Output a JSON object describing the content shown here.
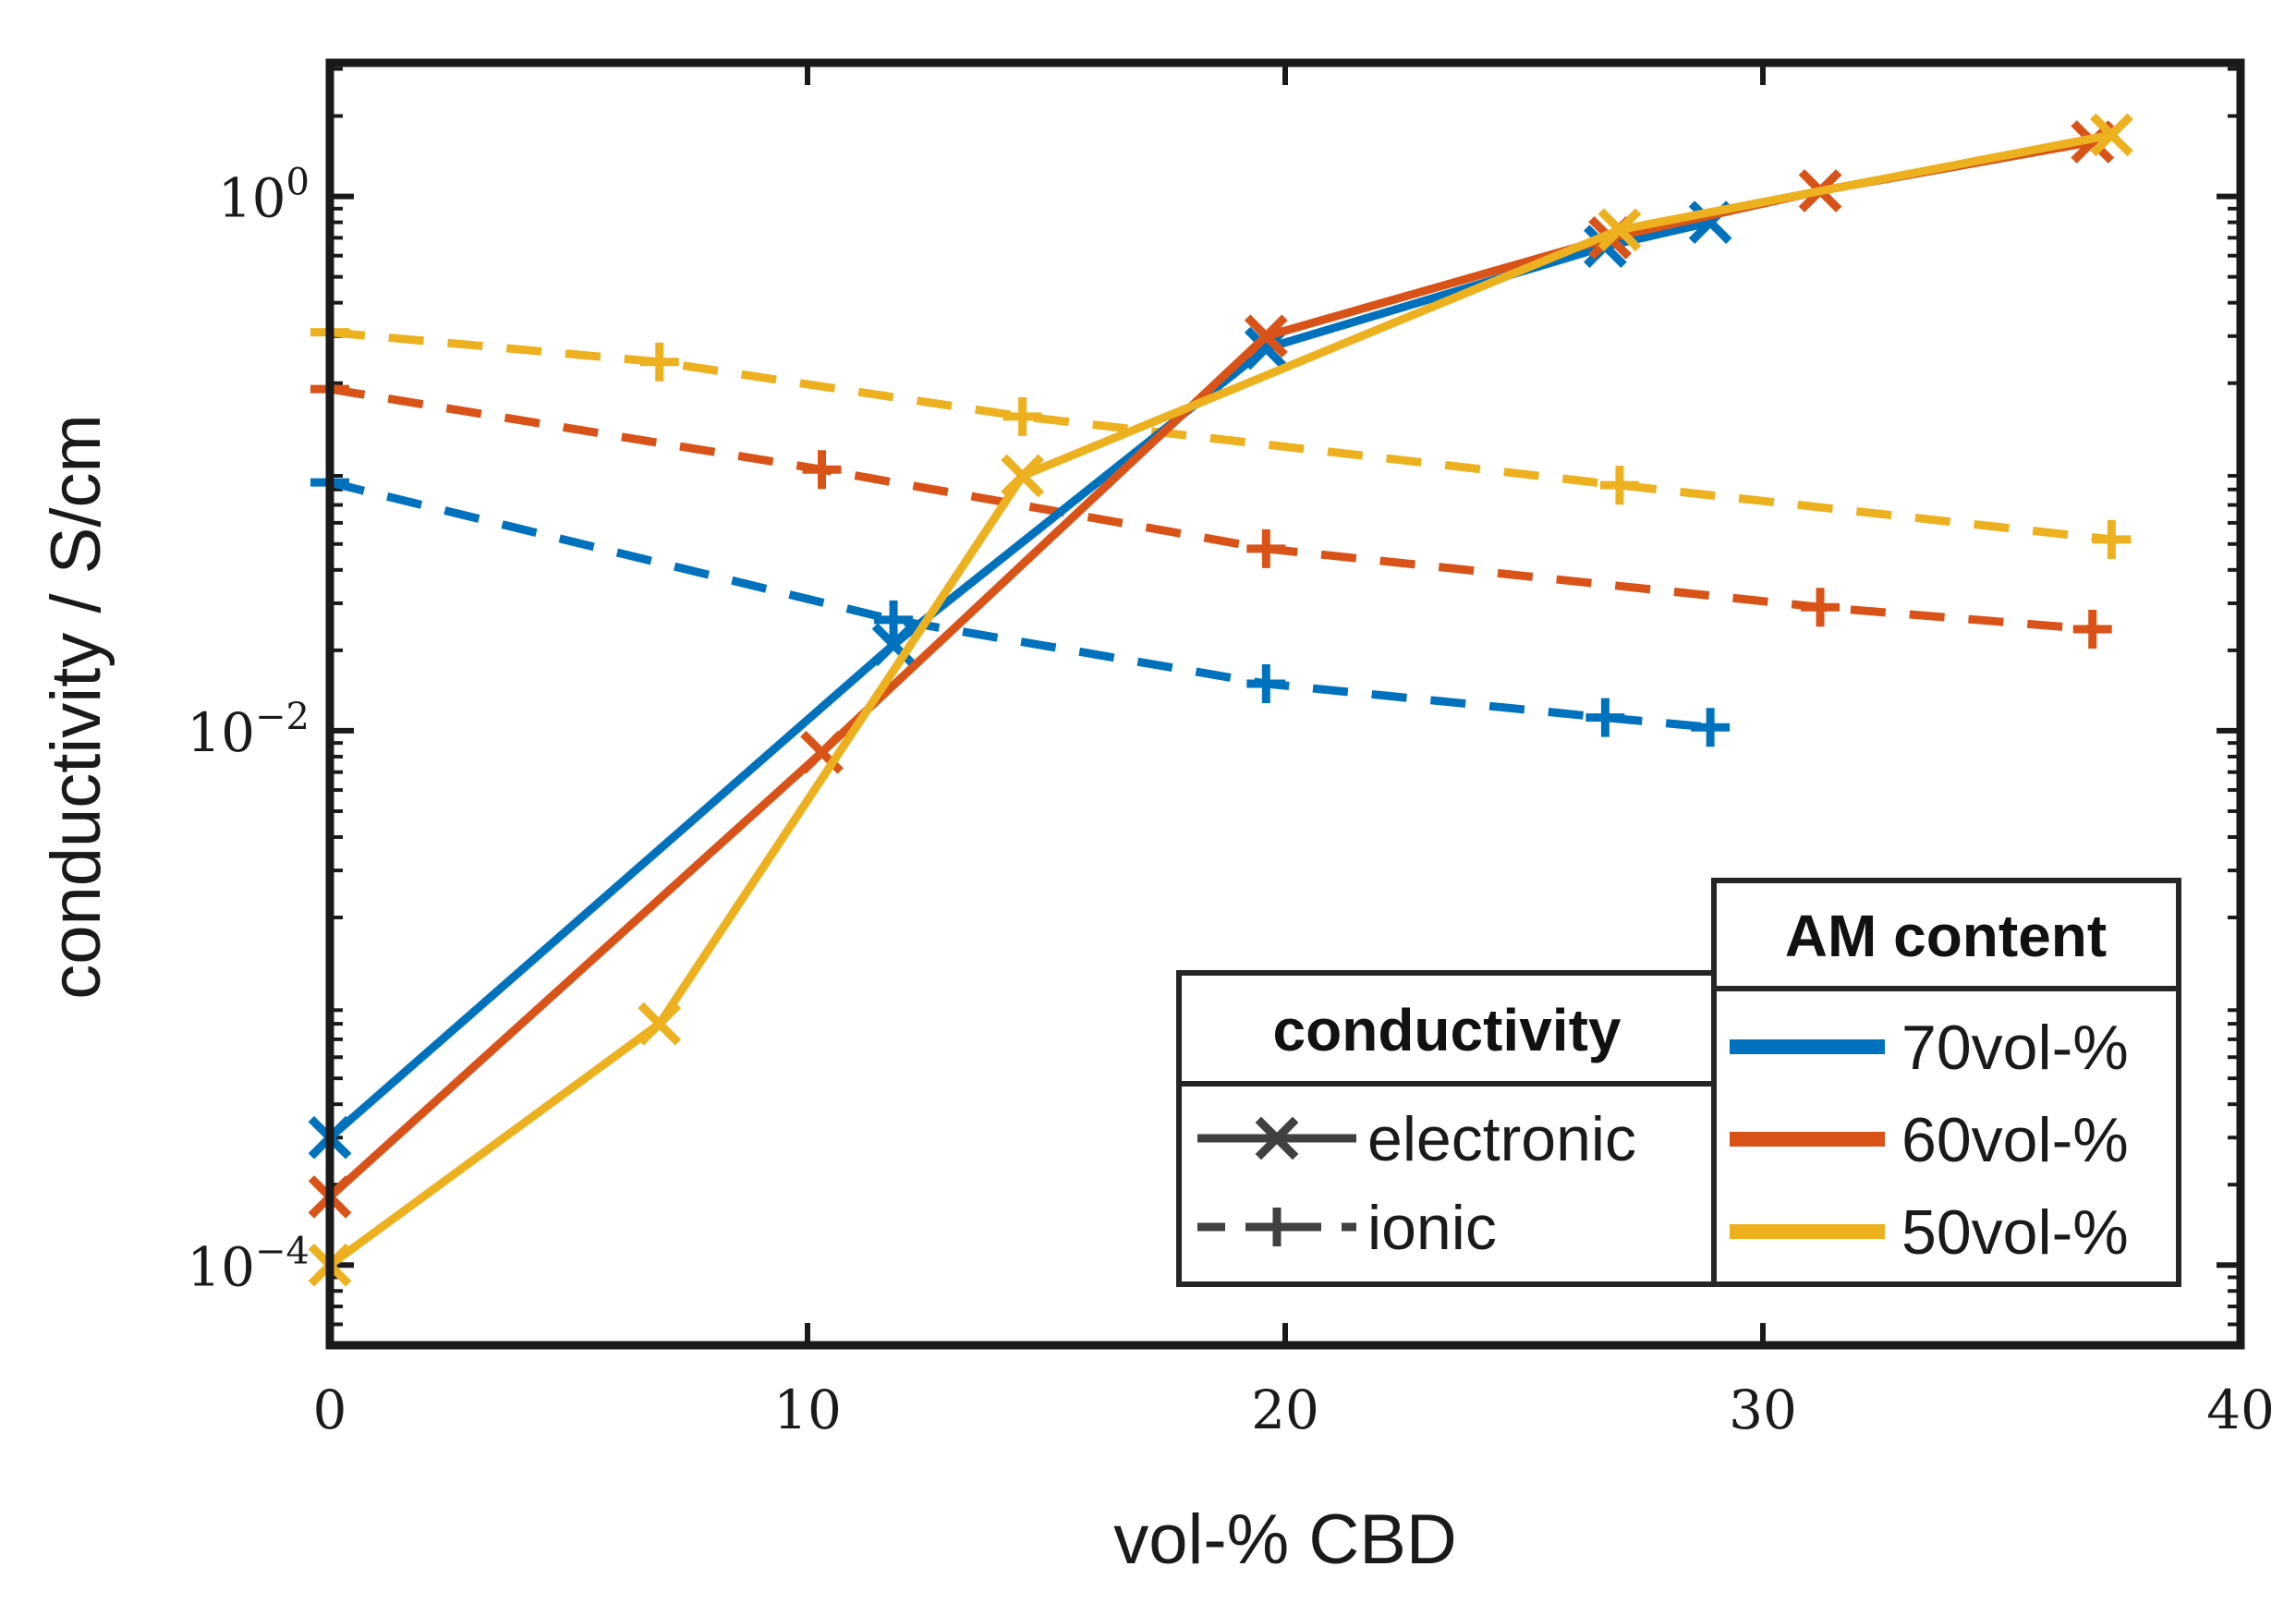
{
  "chart_data": {
    "type": "line",
    "xlabel": "vol-% CBD",
    "ylabel": "conductivity / S/cm",
    "xlim": [
      0,
      40
    ],
    "ylim_log10": [
      -4.3,
      0.5
    ],
    "yscale": "log",
    "x_ticks": [
      {
        "value": 0,
        "label": "0"
      },
      {
        "value": 10,
        "label": "10"
      },
      {
        "value": 20,
        "label": "20"
      },
      {
        "value": 30,
        "label": "30"
      },
      {
        "value": 40,
        "label": "40"
      }
    ],
    "y_ticks": [
      {
        "exp": 0,
        "base": "10",
        "sup": "0"
      },
      {
        "exp": -2,
        "base": "10",
        "sup": "−2"
      },
      {
        "exp": -4,
        "base": "10",
        "sup": "−4"
      }
    ],
    "series": [
      {
        "name": "70vol-% electronic",
        "am": "70vol-%",
        "kind": "electronic",
        "color": "#0072BD",
        "x": [
          0,
          11.8,
          19.6,
          26.7,
          28.9
        ],
        "y": [
          0.0003,
          0.021,
          0.27,
          0.65,
          0.8
        ]
      },
      {
        "name": "60vol-% electronic",
        "am": "60vol-%",
        "kind": "electronic",
        "color": "#D95319",
        "x": [
          0,
          10.3,
          19.6,
          26.8,
          31.2,
          36.9
        ],
        "y": [
          0.00018,
          0.0083,
          0.3,
          0.7,
          1.05,
          1.6
        ]
      },
      {
        "name": "50vol-% electronic",
        "am": "50vol-%",
        "kind": "electronic",
        "color": "#EDB120",
        "x": [
          0,
          6.9,
          14.5,
          27.0,
          37.3
        ],
        "y": [
          0.0001,
          0.0008,
          0.09,
          0.75,
          1.7
        ]
      },
      {
        "name": "70vol-% ionic",
        "am": "70vol-%",
        "kind": "ionic",
        "color": "#0072BD",
        "x": [
          0,
          11.8,
          19.6,
          26.7,
          28.9
        ],
        "y": [
          0.085,
          0.026,
          0.015,
          0.0112,
          0.0103
        ]
      },
      {
        "name": "60vol-% ionic",
        "am": "60vol-%",
        "kind": "ionic",
        "color": "#D95319",
        "x": [
          0,
          10.3,
          19.6,
          31.2,
          36.9
        ],
        "y": [
          0.19,
          0.095,
          0.048,
          0.029,
          0.024
        ]
      },
      {
        "name": "50vol-% ionic",
        "am": "50vol-%",
        "kind": "ionic",
        "color": "#EDB120",
        "x": [
          0,
          6.9,
          14.5,
          27.0,
          37.3
        ],
        "y": [
          0.31,
          0.24,
          0.15,
          0.083,
          0.052
        ]
      }
    ]
  },
  "legend_conductivity": {
    "title": "conductivity",
    "items": [
      {
        "label": "electronic",
        "style": "solid",
        "marker": "x",
        "color": "#404040"
      },
      {
        "label": "ionic",
        "style": "dashed",
        "marker": "+",
        "color": "#404040"
      }
    ]
  },
  "legend_am": {
    "title": "AM content",
    "items": [
      {
        "label": "70vol-%",
        "color": "#0072BD"
      },
      {
        "label": "60vol-%",
        "color": "#D95319"
      },
      {
        "label": "50vol-%",
        "color": "#EDB120"
      }
    ]
  }
}
